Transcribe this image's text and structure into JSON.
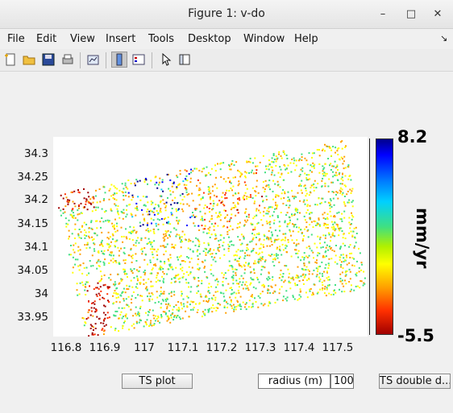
{
  "window": {
    "title": "Figure 1: v-do",
    "controls": {
      "minimize": "–",
      "maximize": "□",
      "close": "✕"
    }
  },
  "menubar": {
    "items": [
      {
        "label": "File"
      },
      {
        "label": "Edit"
      },
      {
        "label": "View"
      },
      {
        "label": "Insert"
      },
      {
        "label": "Tools"
      },
      {
        "label": "Desktop"
      },
      {
        "label": "Window"
      },
      {
        "label": "Help"
      }
    ],
    "dock_glyph": "↘"
  },
  "toolbar": {
    "icons": [
      "new-figure-icon",
      "open-file-icon",
      "save-icon",
      "print-icon",
      "link-plot-icon",
      "colorbar-toggle-icon",
      "legend-toggle-icon",
      "select-pointer-icon",
      "property-editor-icon"
    ]
  },
  "plot": {
    "y_ticks": [
      "34.3",
      "34.25",
      "34.2",
      "34.15",
      "34.1",
      "34.05",
      "34",
      "33.95"
    ],
    "x_ticks": [
      "116.8",
      "116.9",
      "117",
      "117.1",
      "117.2",
      "117.3",
      "117.4",
      "117.5"
    ]
  },
  "colorbar": {
    "max": "8.2",
    "min": "-5.5",
    "label": "mm/yr"
  },
  "controls": {
    "ts_plot_label": "TS plot",
    "radius_label": "radius (m)",
    "radius_value": "100",
    "ts_double_label": "TS double d..."
  },
  "colors": {
    "colormap": [
      "#00008b",
      "#0000ff",
      "#00d0ff",
      "#40e080",
      "#ffff00",
      "#ffa000",
      "#ff3000",
      "#a00000"
    ]
  }
}
